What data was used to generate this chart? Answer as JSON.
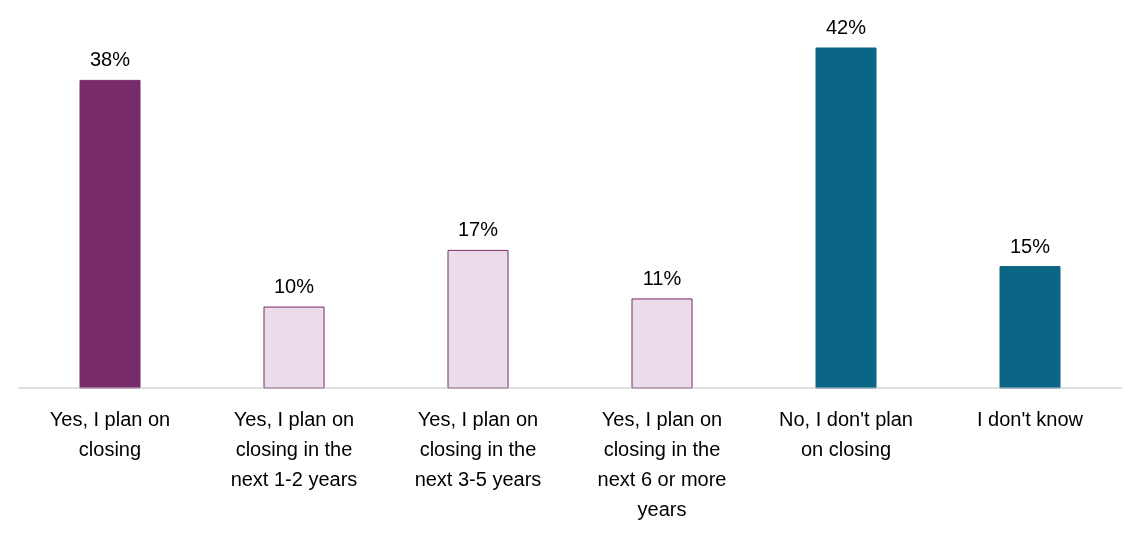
{
  "chart_data": {
    "type": "bar",
    "categories": [
      "Yes, I plan on closing",
      "Yes, I plan on closing in the next 1-2 years",
      "Yes, I plan on closing in the next 3-5 years",
      "Yes, I plan on closing in the next 6 or more years",
      "No, I don't plan on closing",
      "I don't know"
    ],
    "values": [
      38,
      10,
      17,
      11,
      42,
      15
    ],
    "colors": [
      "#772b6b",
      "#ecdcea",
      "#ecdcea",
      "#ecdcea",
      "#0b6585",
      "#0b6585"
    ],
    "value_labels": [
      "38%",
      "10%",
      "17%",
      "11%",
      "42%",
      "15%"
    ]
  }
}
